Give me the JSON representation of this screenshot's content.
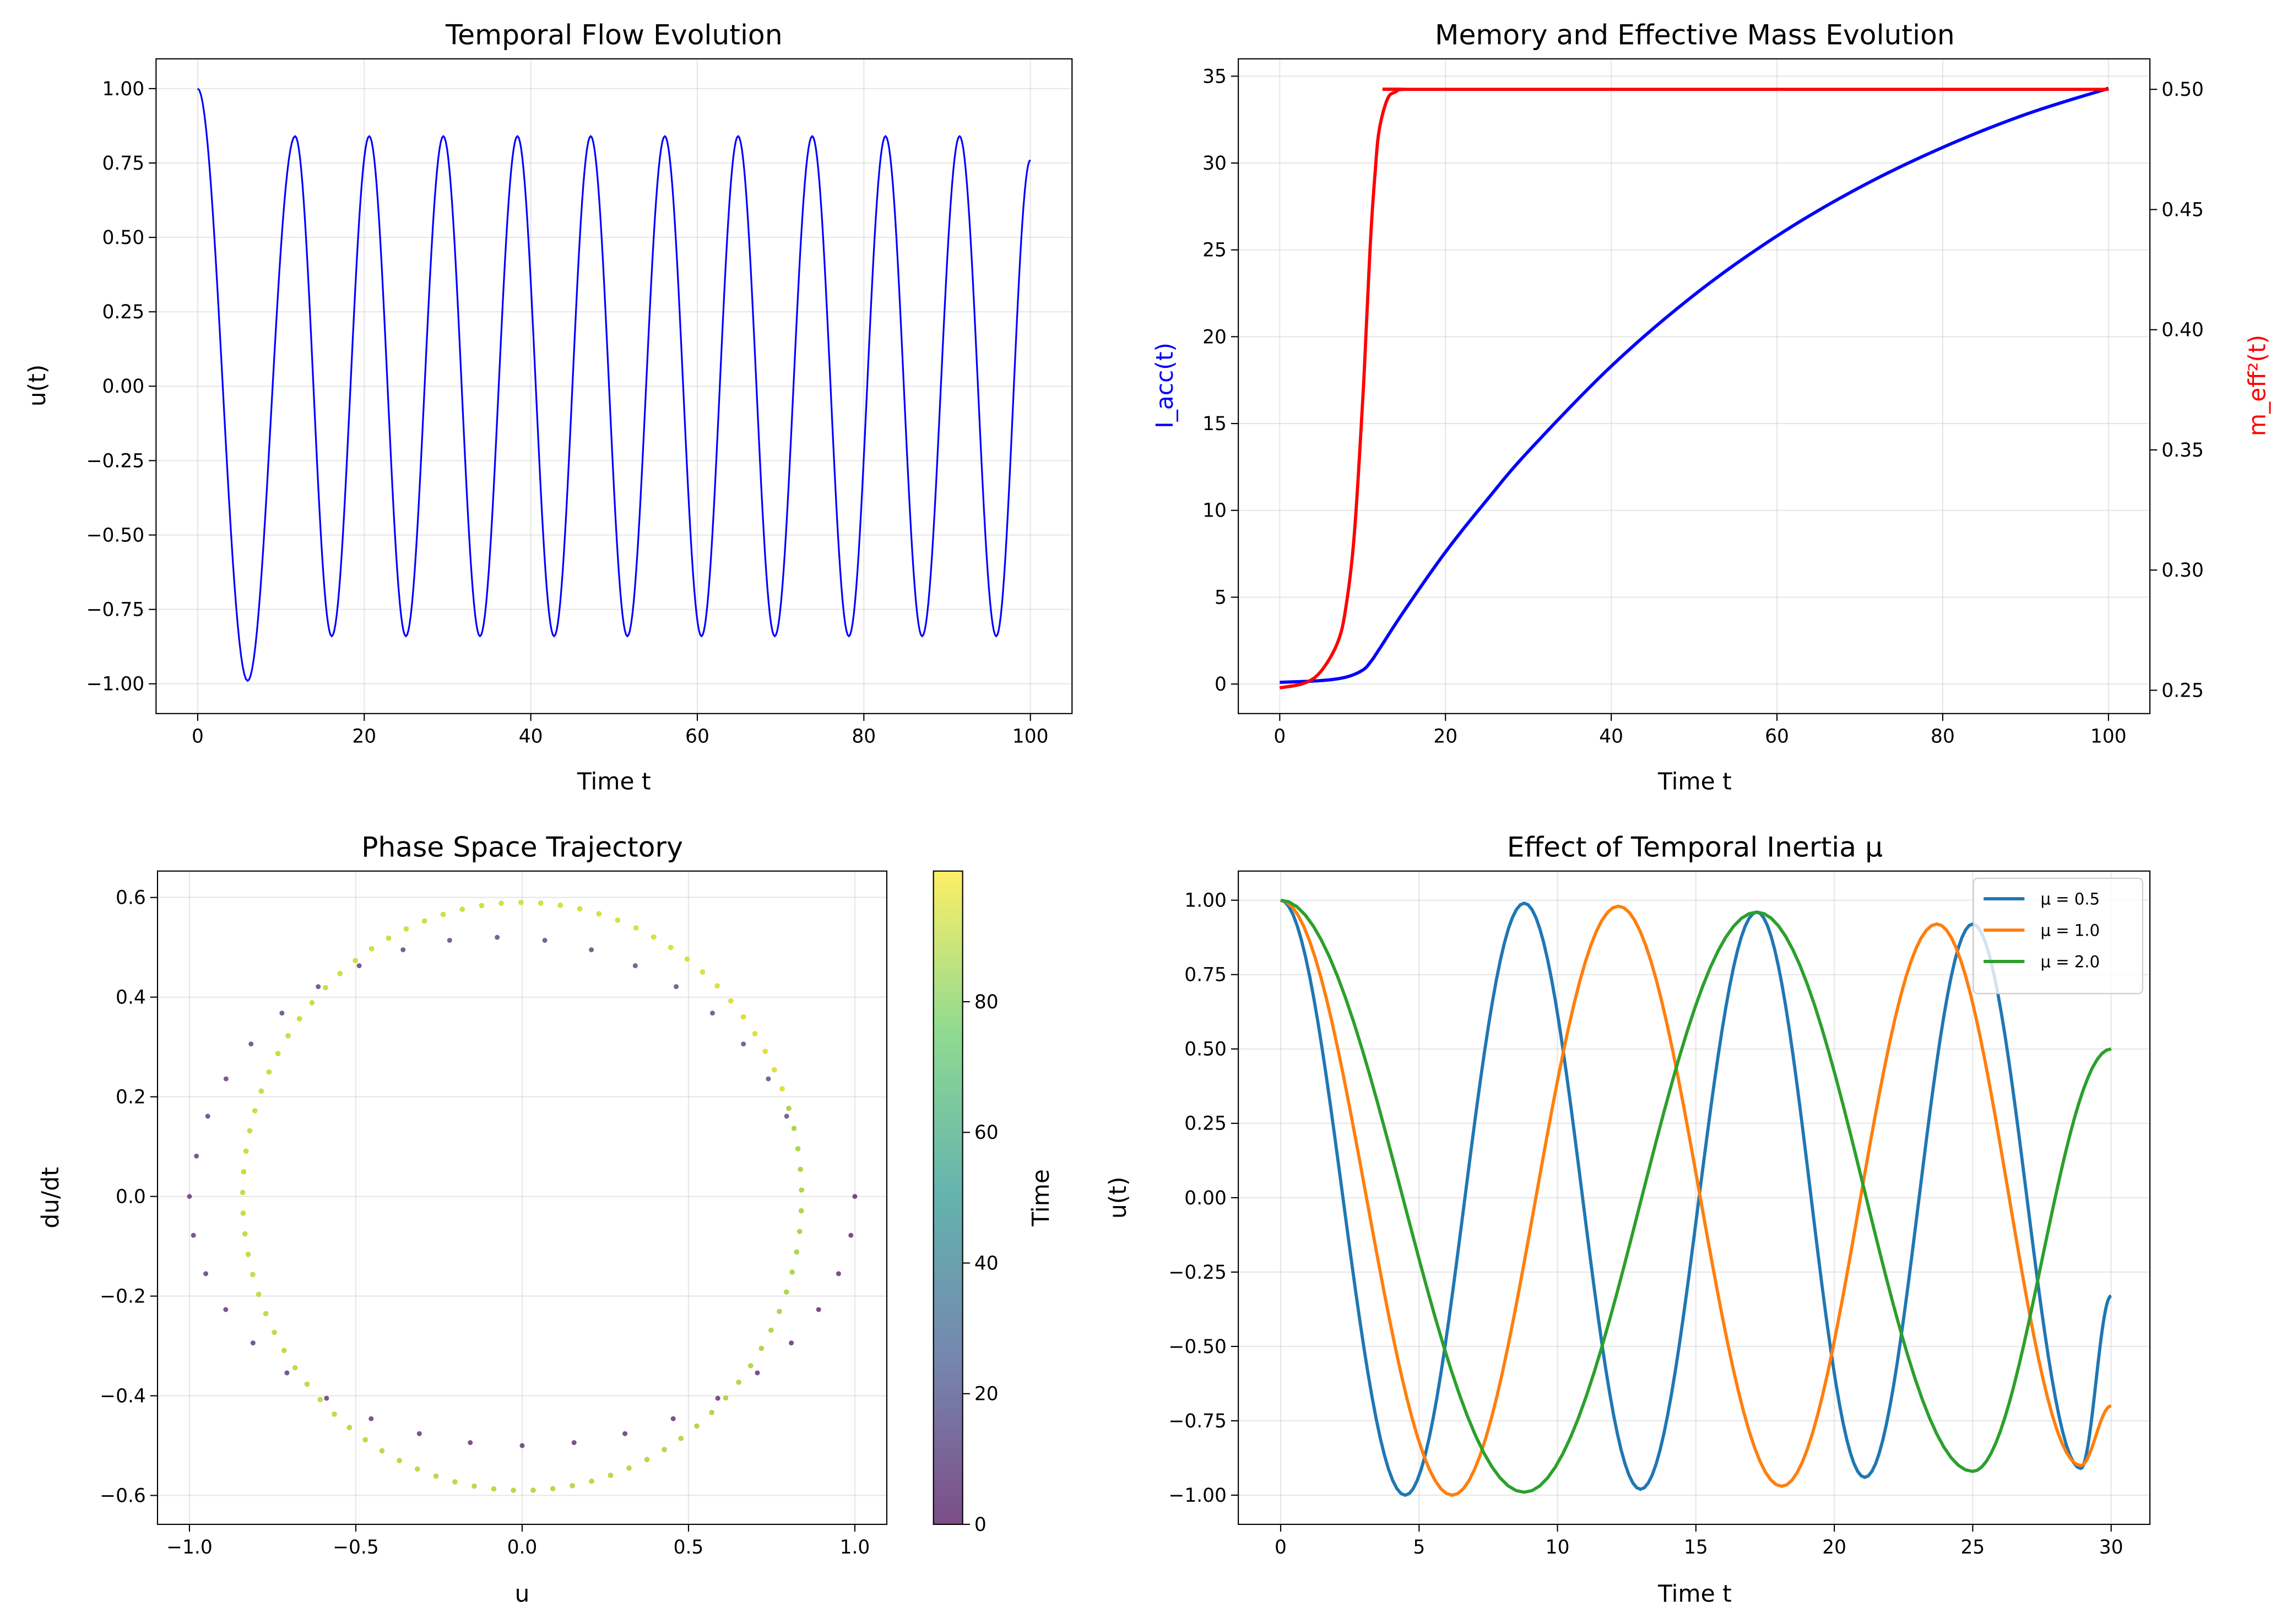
{
  "chart_data": [
    {
      "type": "line",
      "title": "Temporal Flow Evolution",
      "xlabel": "Time t",
      "ylabel": "u(t)",
      "xlim": [
        -5,
        105
      ],
      "ylim": [
        -1.1,
        1.1
      ],
      "grid": true,
      "xticks": [
        0,
        20,
        40,
        60,
        80,
        100
      ],
      "xticklabels": [
        "0",
        "20",
        "40",
        "60",
        "80",
        "100"
      ],
      "yticks": [
        1,
        0.75,
        0.5,
        0.25,
        0,
        -0.25,
        -0.5,
        -0.75,
        -1
      ],
      "yticklabels": [
        "1.00",
        "0.75",
        "0.50",
        "0.25",
        "0.00",
        "−0.25",
        "−0.50",
        "−0.75",
        "−1.00"
      ],
      "series": [
        {
          "color": "#0000ff",
          "extrema": [
            [
              0,
              1.0
            ],
            [
              6.0,
              -0.99
            ],
            [
              11.7,
              0.84
            ],
            [
              16.1,
              -0.84
            ],
            [
              20.6,
              0.84
            ],
            [
              25.0,
              -0.84
            ],
            [
              29.5,
              0.84
            ],
            [
              33.9,
              -0.84
            ],
            [
              38.4,
              0.84
            ],
            [
              42.8,
              -0.84
            ],
            [
              47.2,
              0.84
            ],
            [
              51.6,
              -0.84
            ],
            [
              56.1,
              0.84
            ],
            [
              60.5,
              -0.84
            ],
            [
              64.9,
              0.84
            ],
            [
              69.3,
              -0.84
            ],
            [
              73.8,
              0.84
            ],
            [
              78.2,
              -0.84
            ],
            [
              82.6,
              0.84
            ],
            [
              87.0,
              -0.84
            ],
            [
              91.5,
              0.84
            ],
            [
              95.9,
              -0.84
            ],
            [
              100,
              0.76
            ]
          ]
        }
      ]
    },
    {
      "type": "line",
      "title": "Memory and Effective Mass Evolution",
      "xlabel": "Time t",
      "ylabel": "I_acc(t)",
      "ylabel_right": "m_eff²(t)",
      "ylabel_color": "#0000ff",
      "ylabel_right_color": "#ff0000",
      "xlim": [
        -5,
        105
      ],
      "ylim": [
        -1.7,
        36.0
      ],
      "ylim_right": [
        0.2403,
        0.5127
      ],
      "grid": true,
      "xticks": [
        0,
        20,
        40,
        60,
        80,
        100
      ],
      "xticklabels": [
        "0",
        "20",
        "40",
        "60",
        "80",
        "100"
      ],
      "yticks": [
        0,
        5,
        10,
        15,
        20,
        25,
        30,
        35
      ],
      "yticklabels": [
        "0",
        "5",
        "10",
        "15",
        "20",
        "25",
        "30",
        "35"
      ],
      "yticks_right": [
        0.25,
        0.3,
        0.35,
        0.4,
        0.45,
        0.5
      ],
      "yticklabels_right": [
        "0.25",
        "0.30",
        "0.35",
        "0.40",
        "0.45",
        "0.50"
      ],
      "series": [
        {
          "axis": "left",
          "color": "#0000ff",
          "points": [
            [
              0,
              0.1
            ],
            [
              5,
              0.2
            ],
            [
              8,
              0.4
            ],
            [
              10,
              0.8
            ],
            [
              11,
              1.3
            ],
            [
              12,
              2.0
            ],
            [
              15,
              4.2
            ],
            [
              20,
              7.6
            ],
            [
              25,
              10.6
            ],
            [
              30,
              13.4
            ],
            [
              40,
              18.3
            ],
            [
              50,
              22.4
            ],
            [
              60,
              25.8
            ],
            [
              70,
              28.6
            ],
            [
              80,
              30.9
            ],
            [
              90,
              32.8
            ],
            [
              100,
              34.3
            ]
          ]
        },
        {
          "axis": "right",
          "color": "#ff0000",
          "points": [
            [
              0,
              0.251
            ],
            [
              3,
              0.253
            ],
            [
              5,
              0.258
            ],
            [
              7,
              0.27
            ],
            [
              8,
              0.285
            ],
            [
              9,
              0.315
            ],
            [
              10,
              0.37
            ],
            [
              10.5,
              0.405
            ],
            [
              11,
              0.44
            ],
            [
              11.5,
              0.465
            ],
            [
              12,
              0.483
            ],
            [
              13,
              0.496
            ],
            [
              14,
              0.499
            ],
            [
              15,
              0.5
            ],
            [
              20,
              0.5
            ],
            [
              100,
              0.5
            ]
          ]
        }
      ]
    },
    {
      "type": "scatter",
      "title": "Phase Space Trajectory",
      "xlabel": "u",
      "ylabel": "du/dt",
      "xlim": [
        -1.096,
        1.096
      ],
      "ylim": [
        -0.658,
        0.653
      ],
      "grid": true,
      "xticks": [
        -1,
        -0.5,
        0,
        0.5,
        1
      ],
      "xticklabels": [
        "−1.0",
        "−0.5",
        "0.0",
        "0.5",
        "1.0"
      ],
      "yticks": [
        0.6,
        0.4,
        0.2,
        0,
        -0.2,
        -0.4,
        -0.6
      ],
      "yticklabels": [
        "0.6",
        "0.4",
        "0.2",
        "0.0",
        "−0.2",
        "−0.4",
        "−0.6"
      ],
      "colormap": "viridis",
      "colorbar": {
        "label": "Time",
        "range": [
          0,
          100
        ],
        "ticks": [
          0,
          20,
          40,
          60,
          80
        ],
        "ticklabels": [
          "0",
          "20",
          "40",
          "60",
          "80"
        ]
      },
      "points_u_dudt_t": [
        [
          1,
          0,
          0
        ],
        [
          0.988,
          -0.078,
          0.3
        ],
        [
          0.951,
          -0.155,
          0.6
        ],
        [
          0.891,
          -0.227,
          0.9
        ],
        [
          0.809,
          -0.294,
          1.2
        ],
        [
          0.707,
          -0.354,
          1.5
        ],
        [
          0.588,
          -0.405,
          1.8
        ],
        [
          0.454,
          -0.446,
          2.1
        ],
        [
          0.309,
          -0.476,
          2.4
        ],
        [
          0.156,
          -0.494,
          2.7
        ],
        [
          0,
          -0.5,
          3.0
        ],
        [
          -0.156,
          -0.494,
          3.3
        ],
        [
          -0.309,
          -0.476,
          3.6
        ],
        [
          -0.454,
          -0.446,
          3.9
        ],
        [
          -0.588,
          -0.405,
          4.2
        ],
        [
          -0.707,
          -0.354,
          4.5
        ],
        [
          -0.809,
          -0.294,
          4.8
        ],
        [
          -0.891,
          -0.227,
          5.1
        ],
        [
          -0.951,
          -0.155,
          5.4
        ],
        [
          -0.988,
          -0.078,
          5.7
        ],
        [
          -1.0,
          0,
          6.0
        ],
        [
          -0.979,
          0.081,
          6.3
        ],
        [
          -0.945,
          0.161,
          6.6
        ],
        [
          -0.89,
          0.236,
          6.9
        ],
        [
          -0.815,
          0.306,
          7.2
        ],
        [
          -0.722,
          0.368,
          7.5
        ],
        [
          -0.613,
          0.421,
          7.8
        ],
        [
          -0.49,
          0.463,
          8.1
        ],
        [
          -0.358,
          0.495,
          8.4
        ],
        [
          -0.218,
          0.514,
          8.7
        ],
        [
          -0.075,
          0.52,
          9.0
        ],
        [
          0.068,
          0.514,
          9.3
        ],
        [
          0.208,
          0.495,
          9.6
        ],
        [
          0.34,
          0.463,
          9.9
        ],
        [
          0.463,
          0.421,
          10.2
        ],
        [
          0.572,
          0.368,
          10.5
        ],
        [
          0.665,
          0.306,
          10.8
        ],
        [
          0.74,
          0.236,
          11.1
        ],
        [
          0.795,
          0.161,
          11.4
        ]
      ],
      "limit_cycle": {
        "u_amplitude": 0.84,
        "dudt_amplitude": 0.59,
        "period": 8.9,
        "t_range": [
          11.7,
          99.9
        ]
      }
    },
    {
      "type": "line",
      "title": "Effect of Temporal Inertia μ",
      "xlabel": "Time t",
      "ylabel": "u(t)",
      "xlim": [
        -1.53,
        31.4
      ],
      "ylim": [
        -1.098,
        1.098
      ],
      "grid": true,
      "legend": "top-right",
      "xticks": [
        0,
        5,
        10,
        15,
        20,
        25,
        30
      ],
      "xticklabels": [
        "0",
        "5",
        "10",
        "15",
        "20",
        "25",
        "30"
      ],
      "yticks": [
        1,
        0.75,
        0.5,
        0.25,
        0,
        -0.25,
        -0.5,
        -0.75,
        -1
      ],
      "yticklabels": [
        "1.00",
        "0.75",
        "0.50",
        "0.25",
        "0.00",
        "−0.25",
        "−0.50",
        "−0.75",
        "−1.00"
      ],
      "series": [
        {
          "name": "μ = 0.5",
          "color": "#1f77b4",
          "extrema": [
            [
              0,
              1
            ],
            [
              4.5,
              -1.0
            ],
            [
              8.8,
              0.99
            ],
            [
              13.0,
              -0.98
            ],
            [
              17.2,
              0.96
            ],
            [
              21.1,
              -0.94
            ],
            [
              25.0,
              0.92
            ],
            [
              28.9,
              -0.91
            ],
            [
              30,
              -0.33
            ]
          ]
        },
        {
          "name": "μ = 1.0",
          "color": "#ff7f0e",
          "extrema": [
            [
              0,
              1
            ],
            [
              6.2,
              -1.0
            ],
            [
              12.2,
              0.98
            ],
            [
              18.1,
              -0.97
            ],
            [
              23.7,
              0.92
            ],
            [
              28.9,
              -0.9
            ],
            [
              30,
              -0.7
            ]
          ]
        },
        {
          "name": "μ = 2.0",
          "color": "#2ca02c",
          "extrema": [
            [
              0,
              1
            ],
            [
              8.8,
              -0.99
            ],
            [
              17.2,
              0.96
            ],
            [
              25.0,
              -0.92
            ],
            [
              30,
              0.5
            ]
          ]
        }
      ]
    }
  ]
}
